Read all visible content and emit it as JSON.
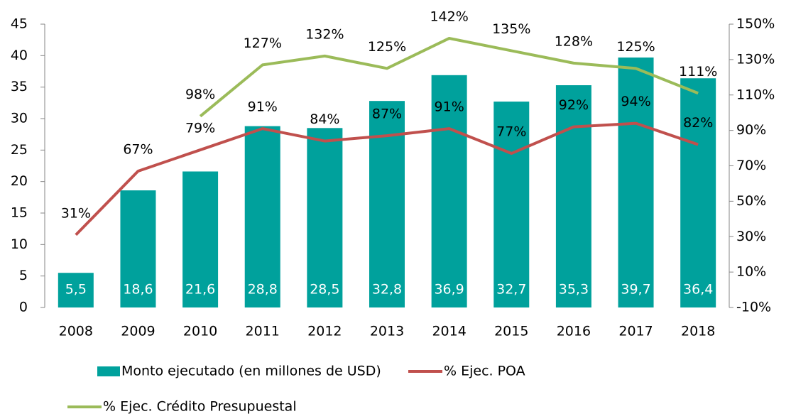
{
  "chart_data": {
    "type": "bar",
    "categories": [
      "2008",
      "2009",
      "2010",
      "2011",
      "2012",
      "2013",
      "2014",
      "2015",
      "2016",
      "2017",
      "2018"
    ],
    "series": [
      {
        "name": "Monto ejecutado (en millones de USD)",
        "type": "bar",
        "color": "#00a19c",
        "values": [
          5.5,
          18.6,
          21.6,
          28.8,
          28.5,
          32.8,
          36.9,
          32.7,
          35.3,
          39.7,
          36.4
        ],
        "value_labels": [
          "5,5",
          "18,6",
          "21,6",
          "28,8",
          "28,5",
          "32,8",
          "36,9",
          "32,7",
          "35,3",
          "39,7",
          "36,4"
        ]
      },
      {
        "name": "% Ejec. POA",
        "type": "line",
        "axis": "y2",
        "color": "#c0504d",
        "values": [
          31,
          67,
          79,
          91,
          84,
          87,
          91,
          77,
          92,
          94,
          82
        ],
        "value_labels": [
          "31%",
          "67%",
          "79%",
          "91%",
          "84%",
          "87%",
          "91%",
          "77%",
          "92%",
          "94%",
          "82%"
        ]
      },
      {
        "name": "% Ejec. Crédito Presupuestal",
        "type": "line",
        "axis": "y2",
        "color": "#9bbb59",
        "values": [
          null,
          null,
          98,
          127,
          132,
          125,
          142,
          135,
          128,
          125,
          111
        ],
        "value_labels": [
          null,
          null,
          "98%",
          "127%",
          "132%",
          "125%",
          "142%",
          "135%",
          "128%",
          "125%",
          "111%"
        ]
      }
    ],
    "ylim": [
      0,
      45
    ],
    "yticks": [
      0,
      5,
      10,
      15,
      20,
      25,
      30,
      35,
      40,
      45
    ],
    "y2lim": [
      -10,
      150
    ],
    "y2ticks": [
      {
        "value": -10,
        "label": "-10%"
      },
      {
        "value": 10,
        "label": "10%"
      },
      {
        "value": 30,
        "label": "30%"
      },
      {
        "value": 50,
        "label": "50%"
      },
      {
        "value": 70,
        "label": "70%"
      },
      {
        "value": 90,
        "label": "90%"
      },
      {
        "value": 110,
        "label": "110%"
      },
      {
        "value": 130,
        "label": "130%"
      },
      {
        "value": 150,
        "label": "150%"
      }
    ],
    "legend": "bottom"
  }
}
